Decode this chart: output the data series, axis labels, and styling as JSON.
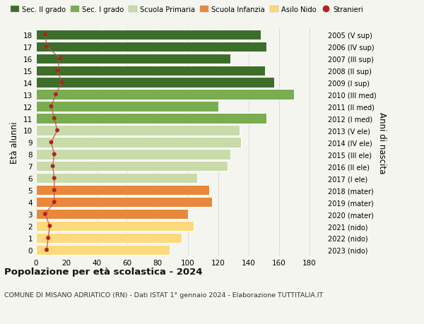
{
  "ages": [
    0,
    1,
    2,
    3,
    4,
    5,
    6,
    7,
    8,
    9,
    10,
    11,
    12,
    13,
    14,
    15,
    16,
    17,
    18
  ],
  "bar_values": [
    88,
    96,
    104,
    100,
    116,
    114,
    106,
    126,
    128,
    135,
    134,
    152,
    120,
    170,
    157,
    151,
    128,
    152,
    148
  ],
  "bar_colors": [
    "#fcd97a",
    "#fcd97a",
    "#fcd97a",
    "#e8883a",
    "#e8883a",
    "#e8883a",
    "#c8dba8",
    "#c8dba8",
    "#c8dba8",
    "#c8dba8",
    "#c8dba8",
    "#7aac50",
    "#7aac50",
    "#7aac50",
    "#3d6e2a",
    "#3d6e2a",
    "#3d6e2a",
    "#3d6e2a",
    "#3d6e2a"
  ],
  "stranieri_values": [
    7,
    8,
    9,
    6,
    12,
    12,
    12,
    11,
    12,
    10,
    14,
    12,
    10,
    13,
    17,
    14,
    16,
    7,
    6
  ],
  "right_labels": [
    "2023 (nido)",
    "2022 (nido)",
    "2021 (nido)",
    "2020 (mater)",
    "2019 (mater)",
    "2018 (mater)",
    "2017 (I ele)",
    "2016 (II ele)",
    "2015 (III ele)",
    "2014 (IV ele)",
    "2013 (V ele)",
    "2012 (I med)",
    "2011 (II med)",
    "2010 (III med)",
    "2009 (I sup)",
    "2008 (II sup)",
    "2007 (III sup)",
    "2006 (IV sup)",
    "2005 (V sup)"
  ],
  "legend_labels": [
    "Sec. II grado",
    "Sec. I grado",
    "Scuola Primaria",
    "Scuola Infanzia",
    "Asilo Nido",
    "Stranieri"
  ],
  "legend_colors": [
    "#3d6e2a",
    "#7aac50",
    "#c8dba8",
    "#e8883a",
    "#fcd97a",
    "#b22222"
  ],
  "ylabel": "Età alunni",
  "ylabel_right": "Anni di nascita",
  "title": "Popolazione per età scolastica - 2024",
  "subtitle": "COMUNE DI MISANO ADRIATICO (RN) - Dati ISTAT 1° gennaio 2024 - Elaborazione TUTTITALIA.IT",
  "xlim": [
    0,
    190
  ],
  "xticks": [
    0,
    20,
    40,
    60,
    80,
    100,
    120,
    140,
    160,
    180
  ],
  "bg_color": "#f5f5f0",
  "bar_edgecolor": "#ffffff",
  "stranieri_color": "#b22222",
  "stranieri_linecolor": "#c0504d"
}
